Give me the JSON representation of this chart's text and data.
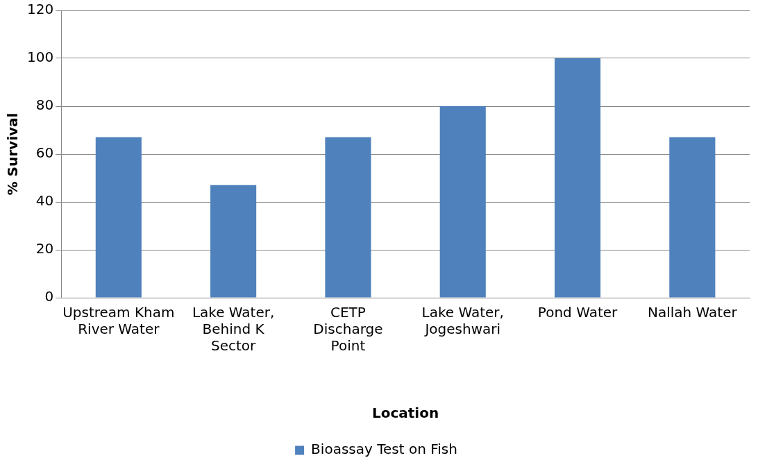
{
  "chart_data": {
    "type": "bar",
    "categories": [
      "Upstream Kham River Water",
      "Lake Water, Behind K Sector",
      "CETP Discharge Point",
      "Lake Water, Jogeshwari",
      "Pond Water",
      "Nallah Water"
    ],
    "series": [
      {
        "name": "Bioassay Test on Fish",
        "color": "#4f81bd",
        "values": [
          67,
          47,
          67,
          80,
          100,
          67
        ]
      }
    ],
    "xlabel": "Location",
    "ylabel": "% Survival",
    "ylim": [
      0,
      120
    ],
    "yticks": [
      0,
      20,
      40,
      60,
      80,
      100,
      120
    ],
    "grid": "y",
    "legend": "bottom"
  }
}
